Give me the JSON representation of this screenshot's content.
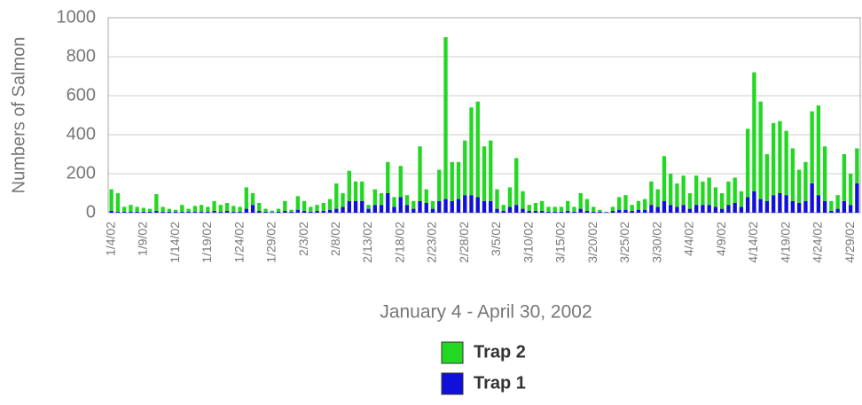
{
  "chart_data": {
    "type": "stacked_bar",
    "categories": [
      "1/4/02",
      null,
      null,
      null,
      null,
      "1/9/02",
      null,
      null,
      null,
      null,
      "1/14/02",
      null,
      null,
      null,
      null,
      "1/19/02",
      null,
      null,
      null,
      null,
      "1/24/02",
      null,
      null,
      null,
      null,
      "1/29/02",
      null,
      null,
      null,
      null,
      "2/3/02",
      null,
      null,
      null,
      null,
      "2/8/02",
      null,
      null,
      null,
      null,
      "2/13/02",
      null,
      null,
      null,
      null,
      "2/18/02",
      null,
      null,
      null,
      null,
      "2/23/02",
      null,
      null,
      null,
      null,
      "2/28/02",
      null,
      null,
      null,
      null,
      "3/5/02",
      null,
      null,
      null,
      null,
      "3/10/02",
      null,
      null,
      null,
      null,
      "3/15/02",
      null,
      null,
      null,
      null,
      "3/20/02",
      null,
      null,
      null,
      null,
      "3/25/02",
      null,
      null,
      null,
      null,
      "3/30/02",
      null,
      null,
      null,
      null,
      "4/4/02",
      null,
      null,
      null,
      null,
      "4/9/02",
      null,
      null,
      null,
      null,
      "4/14/02",
      null,
      null,
      null,
      null,
      "4/19/02",
      null,
      null,
      null,
      null,
      "4/24/02",
      null,
      null,
      null,
      null,
      "4/29/02",
      null
    ],
    "series": [
      {
        "name": "Trap 1",
        "color": "#1010d8",
        "values": [
          10,
          5,
          5,
          5,
          5,
          5,
          5,
          10,
          5,
          5,
          5,
          5,
          5,
          5,
          5,
          5,
          10,
          5,
          10,
          5,
          5,
          20,
          40,
          10,
          5,
          2,
          5,
          10,
          5,
          15,
          10,
          5,
          10,
          10,
          15,
          20,
          30,
          60,
          60,
          60,
          20,
          40,
          40,
          100,
          30,
          80,
          40,
          20,
          60,
          50,
          20,
          60,
          70,
          60,
          70,
          90,
          90,
          80,
          60,
          60,
          20,
          10,
          30,
          40,
          20,
          10,
          10,
          10,
          5,
          5,
          5,
          10,
          5,
          20,
          10,
          5,
          5,
          2,
          10,
          15,
          15,
          10,
          15,
          15,
          40,
          30,
          60,
          40,
          30,
          40,
          20,
          40,
          40,
          40,
          30,
          20,
          40,
          50,
          30,
          80,
          110,
          70,
          60,
          90,
          100,
          90,
          60,
          50,
          60,
          150,
          90,
          60,
          10,
          20,
          60,
          40,
          150
        ]
      },
      {
        "name": "Trap 2",
        "color": "#22d822",
        "values": [
          110,
          95,
          25,
          35,
          25,
          20,
          15,
          85,
          25,
          15,
          10,
          35,
          15,
          30,
          35,
          25,
          50,
          35,
          40,
          30,
          25,
          110,
          60,
          40,
          15,
          8,
          15,
          50,
          10,
          70,
          50,
          25,
          30,
          40,
          55,
          130,
          70,
          155,
          100,
          100,
          20,
          80,
          60,
          160,
          50,
          160,
          50,
          40,
          280,
          70,
          40,
          160,
          830,
          200,
          190,
          280,
          450,
          490,
          280,
          310,
          100,
          30,
          100,
          240,
          90,
          30,
          40,
          50,
          25,
          25,
          25,
          50,
          25,
          80,
          60,
          25,
          10,
          3,
          20,
          65,
          75,
          30,
          45,
          55,
          120,
          90,
          230,
          160,
          120,
          150,
          80,
          150,
          120,
          140,
          100,
          80,
          120,
          130,
          80,
          350,
          610,
          500,
          240,
          370,
          370,
          330,
          270,
          170,
          200,
          370,
          460,
          280,
          50,
          70,
          240,
          160,
          180
        ]
      }
    ],
    "y_label": "Numbers of Salmon",
    "x_label": "January 4 - April 30, 2002",
    "ylim": [
      0,
      1000
    ],
    "yticks": [
      0,
      200,
      400,
      600,
      800,
      1000
    ],
    "grid": true
  }
}
